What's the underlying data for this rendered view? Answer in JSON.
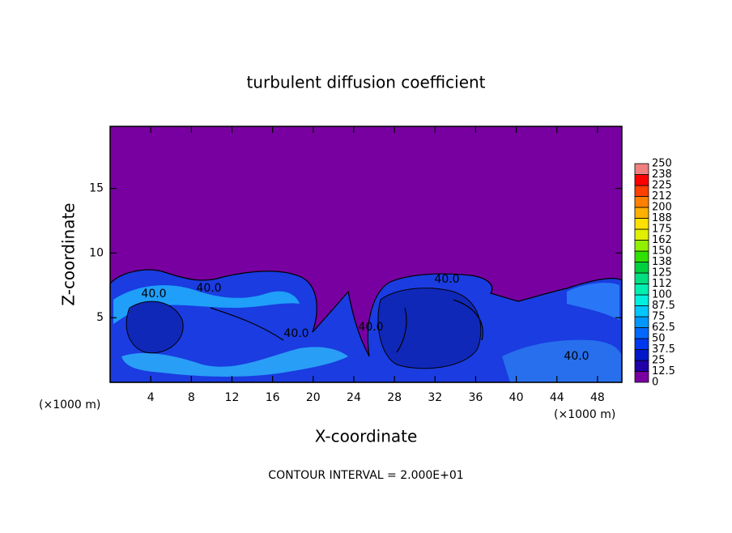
{
  "chart_data": {
    "type": "contour",
    "title": "turbulent diffusion coefficient",
    "x_label": "X-coordinate",
    "y_label": "Z-coordinate",
    "x_unit": "(×1000 m)",
    "x_unit_right": "(×1000 m)",
    "footer": "CONTOUR INTERVAL = 2.000E+01",
    "xlim": [
      0,
      50.4
    ],
    "xticks": [
      4,
      8,
      12,
      16,
      20,
      24,
      28,
      32,
      36,
      40,
      44,
      48
    ],
    "ylim": [
      0,
      19.8
    ],
    "yticks": [
      5,
      10,
      15
    ],
    "contour_labels": [
      "40.0",
      "40.0",
      "40.0",
      "40.0",
      "40.0",
      "40.0"
    ],
    "colorbar": {
      "levels": [
        0,
        12.5,
        25,
        37.5,
        50,
        62.5,
        75,
        87.5,
        100,
        112,
        125,
        138,
        150,
        162,
        175,
        188,
        200,
        212,
        225,
        238,
        250
      ],
      "colors": [
        "#7800a0",
        "#2000a8",
        "#0018c8",
        "#0038f0",
        "#0068ff",
        "#0098ff",
        "#00c8ff",
        "#00f0e0",
        "#00f0b0",
        "#00e080",
        "#00d040",
        "#30e000",
        "#90f000",
        "#e0f000",
        "#ffe000",
        "#ffb000",
        "#ff8000",
        "#ff4000",
        "#ff0000",
        "#f08080"
      ]
    }
  }
}
